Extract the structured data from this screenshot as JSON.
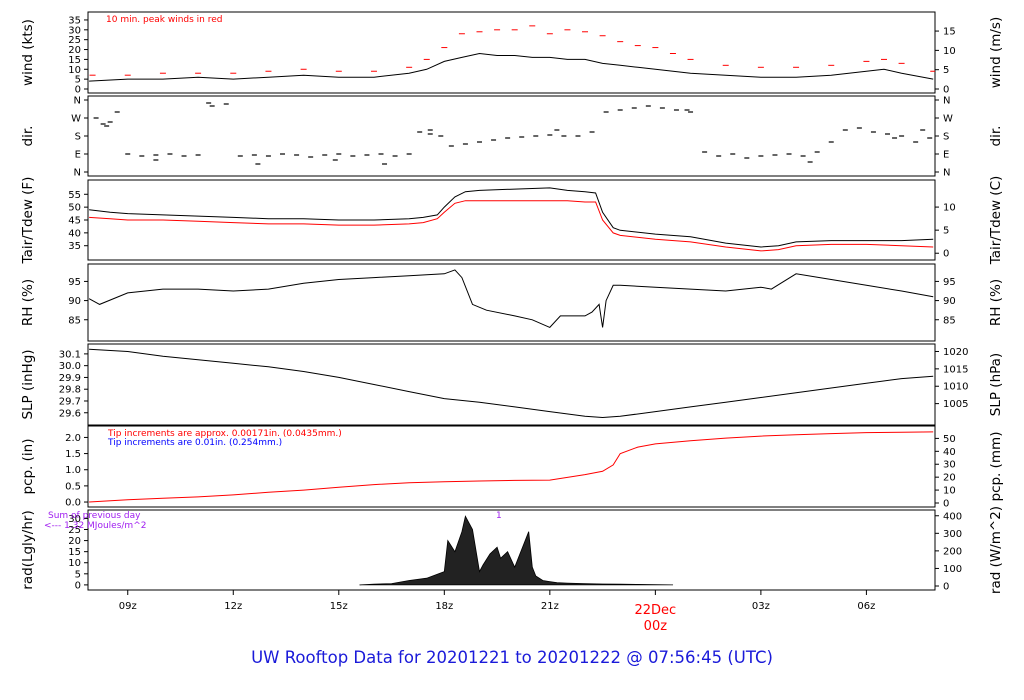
{
  "title": "UW Rooftop Data for 20201221  to  20201222 @ 07:56:45  (UTC)",
  "colors": {
    "black": "#000000",
    "red": "#ff0000",
    "blue": "#0000ff",
    "purple": "#a020f0",
    "title": "#1a1ad9"
  },
  "chart_data": {
    "type": "line",
    "x_axis": {
      "unit": "hours since 2020-12-21 00z",
      "range": [
        7.87,
        31.95
      ],
      "ticks": [
        {
          "x": 9,
          "label": "09z"
        },
        {
          "x": 12,
          "label": "12z"
        },
        {
          "x": 15,
          "label": "15z"
        },
        {
          "x": 18,
          "label": "18z"
        },
        {
          "x": 21,
          "label": "21z"
        },
        {
          "x": 24,
          "label": "00z"
        },
        {
          "x": 27,
          "label": "03z"
        },
        {
          "x": 30,
          "label": "06z"
        }
      ],
      "date_label": "22Dec"
    },
    "panels": [
      {
        "name": "wind",
        "ylabel_left": "wind (kts)",
        "ylabel_right": "wind (m/s)",
        "left_ticks": [
          "0",
          "5",
          "10",
          "15",
          "20",
          "25",
          "30",
          "35"
        ],
        "left_range": [
          0,
          37
        ],
        "right_ticks": [
          "0",
          "5",
          "10",
          "15"
        ],
        "note": "10 min. peak winds in red",
        "series": [
          {
            "name": "wind",
            "color": "black",
            "x": [
              7.9,
              9,
              10,
              11,
              12,
              13,
              14,
              15,
              16,
              17,
              17.5,
              18,
              18.5,
              19,
              19.5,
              20,
              20.5,
              21,
              21.5,
              22,
              22.5,
              23,
              23.5,
              24,
              24.5,
              25,
              26,
              27,
              28,
              29,
              30,
              30.5,
              31,
              31.9
            ],
            "y": [
              4,
              5,
              5,
              6,
              5,
              6,
              7,
              6,
              6,
              8,
              10,
              14,
              16,
              18,
              17,
              17,
              16,
              16,
              15,
              15,
              13,
              12,
              11,
              10,
              9,
              8,
              7,
              6,
              6,
              7,
              9,
              10,
              8,
              5
            ]
          },
          {
            "name": "10 min. peak winds",
            "color": "red",
            "x": [
              8,
              9,
              10,
              11,
              12,
              13,
              14,
              15,
              16,
              17,
              17.5,
              18,
              18.5,
              19,
              19.5,
              20,
              20.5,
              21,
              21.5,
              22,
              22.5,
              23,
              23.5,
              24,
              24.5,
              25,
              26,
              27,
              28,
              29,
              30,
              30.5,
              31,
              31.9
            ],
            "y": [
              7,
              7,
              8,
              8,
              8,
              9,
              10,
              9,
              9,
              11,
              15,
              21,
              28,
              29,
              30,
              30,
              32,
              28,
              30,
              29,
              27,
              24,
              22,
              21,
              18,
              15,
              12,
              11,
              11,
              12,
              14,
              15,
              13,
              9
            ]
          }
        ]
      },
      {
        "name": "dir",
        "ylabel_left": "dir.",
        "ylabel_right": "dir.",
        "left_ticks": [
          "N",
          "E",
          "S",
          "W",
          "N"
        ],
        "right_ticks": [
          "N",
          "E",
          "S",
          "W",
          "N"
        ],
        "y_range_degrees": [
          0,
          360
        ],
        "series": [
          {
            "name": "direction",
            "color": "black",
            "style": "scattered dashes",
            "x": [
              8.1,
              8.3,
              8.5,
              8.7,
              9,
              9.4,
              9.8,
              10.2,
              10.6,
              11,
              11.4,
              11.8,
              12.2,
              12.6,
              13,
              13.4,
              13.8,
              14.2,
              14.6,
              15,
              15.4,
              15.8,
              16.2,
              16.6,
              17,
              17.3,
              17.6,
              17.9,
              18.2,
              18.6,
              19,
              19.4,
              19.8,
              20.2,
              20.6,
              21,
              21.4,
              21.8,
              22.2,
              22.6,
              23,
              23.4,
              23.8,
              24.2,
              24.6,
              25,
              25.4,
              25.8,
              26.2,
              26.6,
              27,
              27.4,
              27.8,
              28.2,
              28.6,
              29,
              29.4,
              29.8,
              30.2,
              30.6,
              31,
              31.4,
              31.8
            ],
            "y": [
              270,
              240,
              250,
              300,
              90,
              80,
              85,
              90,
              80,
              85,
              330,
              340,
              80,
              85,
              80,
              90,
              85,
              75,
              85,
              90,
              80,
              85,
              90,
              80,
              90,
              200,
              190,
              180,
              130,
              140,
              150,
              160,
              170,
              175,
              180,
              185,
              180,
              180,
              200,
              300,
              310,
              320,
              330,
              320,
              310,
              300,
              100,
              80,
              90,
              70,
              80,
              85,
              90,
              80,
              100,
              150,
              210,
              220,
              200,
              190,
              180,
              150,
              170
            ]
          },
          {
            "name": "direction (sparse)",
            "color": "black",
            "style": "scattered dashes",
            "x": [
              8.4,
              9.8,
              11.3,
              12.7,
              14.9,
              16.3,
              17.6,
              21.2,
              24.9,
              28.4,
              30.8,
              31.6
            ],
            "y": [
              230,
              60,
              345,
              40,
              60,
              40,
              210,
              210,
              310,
              50,
              170,
              210
            ]
          }
        ]
      },
      {
        "name": "temp",
        "ylabel_left": "Tair/Tdew (F)",
        "ylabel_right": "Tair/Tdew (C)",
        "left_ticks": [
          "35",
          "40",
          "45",
          "50",
          "55"
        ],
        "left_range": [
          31,
          59
        ],
        "right_ticks": [
          "0",
          "5",
          "10"
        ],
        "series": [
          {
            "name": "Tair",
            "color": "black",
            "x": [
              7.9,
              8.5,
              9,
              10,
              11,
              12,
              13,
              14,
              15,
              16,
              17,
              17.4,
              17.8,
              18,
              18.3,
              18.6,
              19,
              20,
              21,
              21.5,
              22,
              22.3,
              22.5,
              22.8,
              23,
              24,
              25,
              26,
              27,
              27.5,
              28,
              29,
              30,
              31,
              31.9
            ],
            "y": [
              49,
              48,
              47.5,
              47,
              46.5,
              46,
              45.5,
              45.5,
              45,
              45,
              45.5,
              46,
              47,
              50,
              54,
              56,
              56.5,
              57,
              57.5,
              56.5,
              56,
              55.5,
              48,
              42,
              41,
              39.5,
              38.5,
              36,
              34.5,
              35,
              36.5,
              37,
              37,
              37,
              37.5
            ]
          },
          {
            "name": "Tdew",
            "color": "red",
            "x": [
              7.9,
              8.5,
              9,
              10,
              11,
              12,
              13,
              14,
              15,
              16,
              17,
              17.4,
              17.8,
              18,
              18.3,
              18.6,
              19,
              20,
              21,
              21.5,
              22,
              22.3,
              22.5,
              22.8,
              23,
              24,
              25,
              26,
              27,
              27.5,
              28,
              29,
              30,
              31,
              31.9
            ],
            "y": [
              46,
              45.5,
              45,
              45,
              44.5,
              44,
              43.5,
              43.5,
              43,
              43,
              43.5,
              44,
              45.5,
              48,
              51.5,
              52.5,
              52.5,
              52.5,
              52.5,
              52.5,
              52,
              52,
              45,
              40,
              39,
              37.5,
              36.5,
              34.5,
              33,
              33.5,
              35,
              35.5,
              35.5,
              35,
              34.5
            ]
          }
        ]
      },
      {
        "name": "rh",
        "ylabel_left": "RH (%)",
        "ylabel_right": "RH (%)",
        "left_ticks": [
          "85",
          "90",
          "95"
        ],
        "left_range": [
          80.5,
          98.5
        ],
        "right_ticks": [
          "85",
          "90",
          "95"
        ],
        "series": [
          {
            "name": "RH",
            "color": "black",
            "x": [
              7.9,
              8.2,
              9,
              10,
              11,
              12,
              13,
              14,
              15,
              16,
              17,
              18,
              18.3,
              18.5,
              18.8,
              19.2,
              20,
              20.5,
              21,
              21.3,
              21.7,
              22,
              22.2,
              22.4,
              22.5,
              22.6,
              22.8,
              23,
              24,
              25,
              26,
              27,
              27.3,
              28,
              29,
              30,
              31,
              31.9
            ],
            "y": [
              90.5,
              89,
              92,
              93,
              93,
              92.5,
              93,
              94.5,
              95.5,
              96,
              96.5,
              97,
              98,
              96,
              89,
              87.5,
              86,
              85,
              83,
              86,
              86,
              86,
              87,
              89,
              83,
              90,
              94,
              94,
              93.5,
              93,
              92.5,
              93.5,
              93,
              97,
              95.5,
              94,
              92.5,
              91
            ]
          }
        ]
      },
      {
        "name": "slp",
        "ylabel_left": "SLP (inHg)",
        "ylabel_right": "SLP (hPa)",
        "left_ticks": [
          "29.6",
          "29.7",
          "29.8",
          "29.9",
          "30.0",
          "30.1"
        ],
        "left_range": [
          29.53,
          30.15
        ],
        "right_ticks": [
          "1005",
          "1010",
          "1015",
          "1020"
        ],
        "series": [
          {
            "name": "SLP",
            "color": "black",
            "x": [
              7.9,
              9,
              10,
              11,
              12,
              13,
              14,
              15,
              16,
              17,
              18,
              19,
              20,
              21,
              22,
              22.5,
              23,
              24,
              25,
              26,
              27,
              28,
              29,
              30,
              31,
              31.9
            ],
            "y": [
              30.14,
              30.12,
              30.08,
              30.05,
              30.02,
              29.99,
              29.95,
              29.9,
              29.84,
              29.78,
              29.72,
              29.69,
              29.65,
              29.61,
              29.57,
              29.56,
              29.57,
              29.61,
              29.65,
              29.69,
              29.73,
              29.77,
              29.81,
              29.85,
              29.89,
              29.91
            ]
          }
        ]
      },
      {
        "name": "pcp",
        "ylabel_left": "pcp. (in)",
        "ylabel_right": "pcp. (mm)",
        "left_ticks": [
          "0.0",
          "0.5",
          "1.0",
          "1.5",
          "2.0"
        ],
        "left_range": [
          -0.03,
          2.23
        ],
        "right_ticks": [
          "0",
          "10",
          "20",
          "30",
          "40",
          "50"
        ],
        "notes": [
          {
            "text": "Tip increments are approx. 0.00171in. (0.0435mm.)",
            "color": "red"
          },
          {
            "text": "Tip increments are 0.01in. (0.254mm.)",
            "color": "blue"
          }
        ],
        "series": [
          {
            "name": "pcp",
            "color": "red",
            "x": [
              7.9,
              9,
              10,
              11,
              12,
              13,
              14,
              15,
              16,
              17,
              18,
              19,
              20,
              21,
              22,
              22.5,
              22.8,
              23,
              23.5,
              24,
              25,
              26,
              27,
              28,
              29,
              30,
              31,
              31.9
            ],
            "y": [
              0,
              0.07,
              0.12,
              0.16,
              0.22,
              0.3,
              0.37,
              0.46,
              0.54,
              0.6,
              0.63,
              0.65,
              0.67,
              0.68,
              0.85,
              0.95,
              1.15,
              1.5,
              1.7,
              1.8,
              1.9,
              1.98,
              2.04,
              2.08,
              2.12,
              2.15,
              2.16,
              2.17
            ]
          }
        ]
      },
      {
        "name": "rad",
        "ylabel_left": "rad(Lgly/hr)",
        "ylabel_right": "rad (W/m^2)",
        "left_ticks": [
          "0",
          "5",
          "10",
          "15",
          "20",
          "25",
          "30"
        ],
        "left_range": [
          -0.5,
          32
        ],
        "right_ticks": [
          "0",
          "100",
          "200",
          "300",
          "400"
        ],
        "notes": [
          {
            "text": "Sum of previous day",
            "color": "purple"
          },
          {
            "text": "<--- 1.32 MJoules/m^2",
            "color": "purple"
          },
          {
            "text": "1",
            "color": "purple"
          }
        ],
        "series": [
          {
            "name": "rad",
            "color": "black",
            "style": "filled area",
            "x": [
              15.6,
              16,
              16.5,
              17,
              17.5,
              18,
              18.1,
              18.3,
              18.5,
              18.6,
              18.8,
              19,
              19.1,
              19.3,
              19.5,
              19.6,
              19.8,
              20,
              20.2,
              20.4,
              20.5,
              20.6,
              20.8,
              21,
              21.2,
              21.5,
              22,
              22.5,
              23,
              23.5,
              24.5
            ],
            "y": [
              0,
              0.3,
              0.6,
              2,
              3,
              6,
              20,
              15,
              24,
              31,
              25,
              6,
              9,
              14,
              17,
              12,
              15,
              8,
              16,
              24,
              8,
              4,
              2,
              1.5,
              1,
              0.8,
              0.6,
              0.4,
              0.3,
              0.2,
              0
            ]
          }
        ]
      }
    ]
  }
}
